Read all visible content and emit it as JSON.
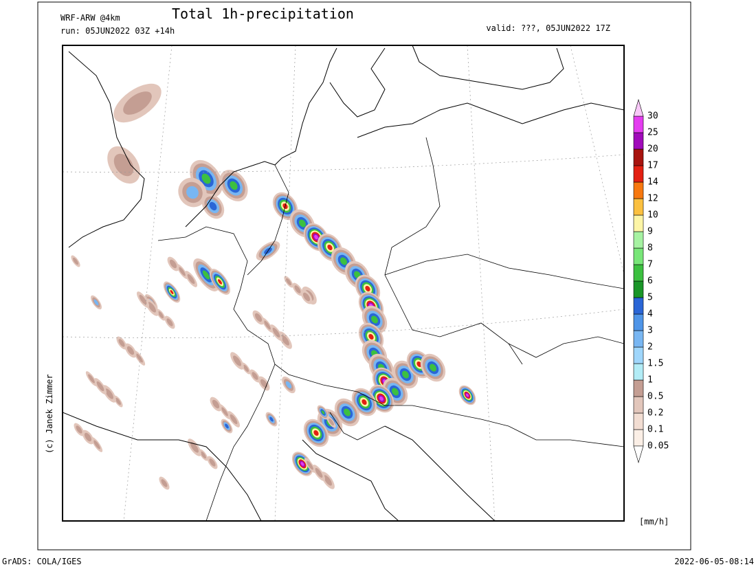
{
  "header": {
    "model": "WRF-ARW @4km",
    "title": "Total 1h-precipitation",
    "run": "run: 05JUN2022 03Z +14h",
    "valid": "valid: ???, 05JUN2022 17Z"
  },
  "colorbar": {
    "levels": [
      0.05,
      0.1,
      0.2,
      0.5,
      1,
      1.5,
      2,
      3,
      4,
      5,
      6,
      7,
      8,
      9,
      10,
      12,
      14,
      17,
      20,
      25,
      30
    ],
    "colors": [
      "#fbefe6",
      "#f2ddd2",
      "#e2c6bb",
      "#c49e93",
      "#b2ecf6",
      "#9fd6fb",
      "#78b6f2",
      "#4f95e8",
      "#2a66d6",
      "#1a9628",
      "#3cc040",
      "#78e678",
      "#a6f2a2",
      "#fdf5a6",
      "#fbc040",
      "#f7780f",
      "#e32012",
      "#a8140f",
      "#a00aba",
      "#e43cf0"
    ],
    "unit": "[mm/h]"
  },
  "credit": "(c) Janek Zimmer",
  "footer": {
    "left": "GrADS: COLA/IGES",
    "right": "2022-06-05-08:14"
  }
}
